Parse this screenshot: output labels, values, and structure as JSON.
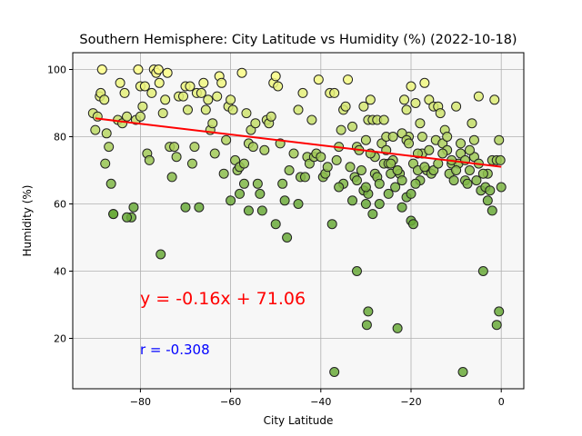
{
  "chart_data": {
    "type": "scatter",
    "title": "Southern Hemisphere: City Latitude vs Humidity (%) (2022-10-18)",
    "xlabel": "City Latitude",
    "ylabel": "Humidity (%)",
    "xlim": [
      -95,
      5
    ],
    "ylim": [
      5,
      105
    ],
    "xticks": [
      -80,
      -60,
      -40,
      -20,
      0
    ],
    "yticks": [
      20,
      40,
      60,
      80,
      100
    ],
    "grid": true,
    "annotations": {
      "equation": "y = -0.16x + 71.06",
      "equation_color": "#ff0000",
      "r": "r = -0.308",
      "r_color": "#0000ff"
    },
    "regression": {
      "slope": -0.16,
      "intercept": 71.06,
      "x_range": [
        -90,
        0
      ],
      "color": "#ff0000"
    },
    "colors": {
      "low": "#6aaa3a",
      "high": "#ffff88",
      "edge": "#222222",
      "plot_bg": "#f7f7f7",
      "grid": "#b0b0b0"
    },
    "points": [
      [
        -90.5,
        87
      ],
      [
        -90,
        82
      ],
      [
        -89.5,
        86
      ],
      [
        -89,
        92
      ],
      [
        -88.8,
        93
      ],
      [
        -88.5,
        100
      ],
      [
        -88,
        91
      ],
      [
        -87.8,
        72
      ],
      [
        -87.5,
        81
      ],
      [
        -87,
        77
      ],
      [
        -86.5,
        66
      ],
      [
        -86,
        57
      ],
      [
        -85,
        85
      ],
      [
        -84.5,
        96
      ],
      [
        -84,
        84
      ],
      [
        -83.5,
        93
      ],
      [
        -83,
        86
      ],
      [
        -82,
        56
      ],
      [
        -81.5,
        59
      ],
      [
        -81,
        85
      ],
      [
        -80.5,
        100
      ],
      [
        -80,
        95
      ],
      [
        -80,
        86
      ],
      [
        -79.5,
        89
      ],
      [
        -79,
        95
      ],
      [
        -78.5,
        75
      ],
      [
        -78,
        73
      ],
      [
        -77.5,
        93
      ],
      [
        -77,
        100
      ],
      [
        -76.5,
        99
      ],
      [
        -76,
        100
      ],
      [
        -75.8,
        96
      ],
      [
        -75.5,
        45
      ],
      [
        -75,
        87
      ],
      [
        -74.5,
        91
      ],
      [
        -74,
        99
      ],
      [
        -73.5,
        77
      ],
      [
        -73,
        68
      ],
      [
        -72.5,
        77
      ],
      [
        -72,
        74
      ],
      [
        -71.5,
        92
      ],
      [
        -70.5,
        92
      ],
      [
        -70,
        95
      ],
      [
        -69.5,
        88
      ],
      [
        -69,
        95
      ],
      [
        -68.5,
        72
      ],
      [
        -68,
        77
      ],
      [
        -67.5,
        93
      ],
      [
        -67,
        59
      ],
      [
        -66.5,
        93
      ],
      [
        -66,
        96
      ],
      [
        -65.5,
        88
      ],
      [
        -65,
        91
      ],
      [
        -64.5,
        82
      ],
      [
        -64,
        84
      ],
      [
        -63.5,
        75
      ],
      [
        -63,
        92
      ],
      [
        -62.5,
        98
      ],
      [
        -62,
        96
      ],
      [
        -61.5,
        69
      ],
      [
        -61,
        79
      ],
      [
        -60.5,
        89
      ],
      [
        -60,
        91
      ],
      [
        -59.5,
        88
      ],
      [
        -59,
        73
      ],
      [
        -58.5,
        70
      ],
      [
        -58,
        71
      ],
      [
        -57.5,
        99
      ],
      [
        -57,
        72
      ],
      [
        -56.5,
        87
      ],
      [
        -56,
        78
      ],
      [
        -55.5,
        82
      ],
      [
        -55,
        77
      ],
      [
        -54.5,
        84
      ],
      [
        -54,
        66
      ],
      [
        -53.5,
        63
      ],
      [
        -53,
        58
      ],
      [
        -52.5,
        76
      ],
      [
        -52,
        85
      ],
      [
        -51.5,
        84
      ],
      [
        -51,
        86
      ],
      [
        -50.5,
        96
      ],
      [
        -50,
        98
      ],
      [
        -49.5,
        95
      ],
      [
        -49,
        78
      ],
      [
        -48.5,
        66
      ],
      [
        -48,
        61
      ],
      [
        -47.5,
        50
      ],
      [
        -47,
        70
      ],
      [
        -46,
        75
      ],
      [
        -45,
        88
      ],
      [
        -44.5,
        68
      ],
      [
        -44,
        93
      ],
      [
        -43.5,
        68
      ],
      [
        -43,
        74
      ],
      [
        -42.5,
        72
      ],
      [
        -42,
        85
      ],
      [
        -41.5,
        74
      ],
      [
        -41,
        75
      ],
      [
        -40.5,
        97
      ],
      [
        -40,
        74
      ],
      [
        -39.5,
        68
      ],
      [
        -39,
        69
      ],
      [
        -38.5,
        71
      ],
      [
        -38,
        93
      ],
      [
        -37.5,
        54
      ],
      [
        -37,
        93
      ],
      [
        -36.5,
        73
      ],
      [
        -36,
        77
      ],
      [
        -35.5,
        82
      ],
      [
        -35,
        88
      ],
      [
        -34.5,
        89
      ],
      [
        -34,
        97
      ],
      [
        -33.5,
        71
      ],
      [
        -33,
        83
      ],
      [
        -32.5,
        68
      ],
      [
        -32,
        77
      ],
      [
        -31.5,
        76
      ],
      [
        -31,
        70
      ],
      [
        -30.5,
        89
      ],
      [
        -30,
        79
      ],
      [
        -29.5,
        85
      ],
      [
        -29,
        91
      ],
      [
        -28.5,
        85
      ],
      [
        -28,
        74
      ],
      [
        -27.5,
        85
      ],
      [
        -27,
        60
      ],
      [
        -26.5,
        78
      ],
      [
        -26,
        72
      ],
      [
        -25.5,
        76
      ],
      [
        -25,
        72
      ],
      [
        -24.5,
        69
      ],
      [
        -24,
        73
      ],
      [
        -23.5,
        65
      ],
      [
        -23,
        70
      ],
      [
        -22.5,
        69
      ],
      [
        -22,
        67
      ],
      [
        -21.5,
        91
      ],
      [
        -21,
        88
      ],
      [
        -20.5,
        80
      ],
      [
        -20,
        95
      ],
      [
        -19.5,
        72
      ],
      [
        -19,
        90
      ],
      [
        -18.5,
        70
      ],
      [
        -18,
        67
      ],
      [
        -17.5,
        75
      ],
      [
        -17,
        96
      ],
      [
        -16.5,
        70
      ],
      [
        -16,
        91
      ],
      [
        -15.5,
        69
      ],
      [
        -15,
        89
      ],
      [
        -14.5,
        79
      ],
      [
        -14,
        89
      ],
      [
        -13.5,
        87
      ],
      [
        -13,
        78
      ],
      [
        -12.5,
        82
      ],
      [
        -12,
        76
      ],
      [
        -11.5,
        69
      ],
      [
        -11,
        72
      ],
      [
        -10.5,
        67
      ],
      [
        -10,
        89
      ],
      [
        -9.5,
        72
      ],
      [
        -9,
        78
      ],
      [
        -8.5,
        10
      ],
      [
        -8,
        67
      ],
      [
        -7.5,
        66
      ],
      [
        -7,
        70
      ],
      [
        -6.5,
        84
      ],
      [
        -6,
        74
      ],
      [
        -5.5,
        67
      ],
      [
        -5,
        92
      ],
      [
        -4.5,
        64
      ],
      [
        -4,
        40
      ],
      [
        -3.5,
        65
      ],
      [
        -3,
        69
      ],
      [
        -2.5,
        64
      ],
      [
        -2,
        58
      ],
      [
        -1.5,
        91
      ],
      [
        -1,
        24
      ],
      [
        -0.5,
        28
      ],
      [
        0,
        65
      ],
      [
        -30.5,
        64
      ],
      [
        -29.5,
        63
      ],
      [
        -29,
        75
      ],
      [
        -28,
        69
      ],
      [
        -27.5,
        68
      ],
      [
        -27,
        66
      ],
      [
        -26,
        85
      ],
      [
        -25.5,
        80
      ],
      [
        -24.5,
        72
      ],
      [
        -24,
        80
      ],
      [
        -23,
        70
      ],
      [
        -22,
        81
      ],
      [
        -21,
        79
      ],
      [
        -20.5,
        78
      ],
      [
        -20,
        55
      ],
      [
        -19.5,
        54
      ],
      [
        -19,
        66
      ],
      [
        -18.5,
        75
      ],
      [
        -18,
        84
      ],
      [
        -17.5,
        80
      ],
      [
        -17,
        71
      ],
      [
        -16,
        76
      ],
      [
        -15,
        70
      ],
      [
        -14,
        72
      ],
      [
        -13,
        75
      ],
      [
        -12,
        80
      ],
      [
        -11,
        73
      ],
      [
        -10,
        70
      ],
      [
        -9,
        75
      ],
      [
        -8,
        73
      ],
      [
        -7,
        76
      ],
      [
        -6,
        79
      ],
      [
        -5,
        72
      ],
      [
        -4,
        69
      ],
      [
        -3,
        61
      ],
      [
        -2,
        73
      ],
      [
        -1,
        73
      ],
      [
        -0.5,
        79
      ],
      [
        -0.2,
        73
      ],
      [
        -30,
        65
      ],
      [
        -29.8,
        24
      ],
      [
        -29.5,
        28
      ],
      [
        -23,
        23
      ],
      [
        -37,
        10
      ],
      [
        -32,
        40
      ],
      [
        -32,
        67
      ],
      [
        -33,
        61
      ],
      [
        -35,
        66
      ],
      [
        -36,
        65
      ],
      [
        -30,
        60
      ],
      [
        -28.5,
        57
      ],
      [
        -25,
        63
      ],
      [
        -22,
        59
      ],
      [
        -21,
        62
      ],
      [
        -20,
        63
      ],
      [
        -45,
        60
      ],
      [
        -50,
        54
      ],
      [
        -56,
        58
      ],
      [
        -57,
        66
      ],
      [
        -58,
        63
      ],
      [
        -60,
        61
      ],
      [
        -70,
        59
      ],
      [
        -83,
        56
      ],
      [
        -86,
        57
      ]
    ]
  }
}
